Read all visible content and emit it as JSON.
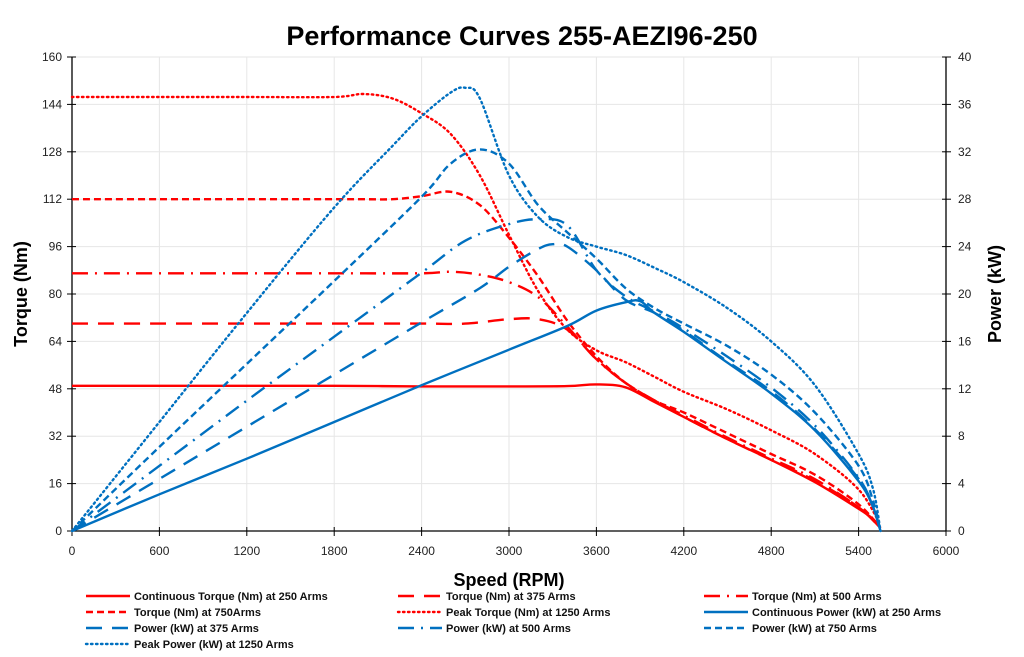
{
  "chart_data": {
    "type": "line",
    "title": "Performance Curves 255-AEZI96-250",
    "xlabel": "Speed (RPM)",
    "ylabel": "Torque (Nm)",
    "y2label": "Power (kW)",
    "xlim": [
      0,
      6000
    ],
    "ylim": [
      0,
      160
    ],
    "y2lim": [
      0,
      40
    ],
    "xticks": [
      0,
      600,
      1200,
      1800,
      2400,
      3000,
      3600,
      4200,
      4800,
      5400,
      6000
    ],
    "yticks": [
      0,
      16,
      32,
      48,
      64,
      80,
      96,
      112,
      128,
      144,
      160
    ],
    "y2ticks": [
      0,
      4,
      8,
      12,
      16,
      20,
      24,
      28,
      32,
      36,
      40
    ],
    "grid": true,
    "legend_position": "bottom",
    "colors": {
      "torque": "#ff0000",
      "power": "#0070c0"
    },
    "series": [
      {
        "name": "Continuous Torque (Nm) at 250 Arms",
        "axis": "left",
        "color": "#ff0000",
        "style": "solid",
        "x": [
          0,
          600,
          1200,
          1800,
          2400,
          3000,
          3400,
          3600,
          3800,
          4000,
          4200,
          4500,
          4800,
          5100,
          5400,
          5500,
          5550
        ],
        "y": [
          49,
          49,
          49,
          49,
          48.8,
          48.8,
          48.9,
          49.5,
          48.5,
          43.5,
          38.5,
          31,
          24,
          16.5,
          7.5,
          4,
          1
        ]
      },
      {
        "name": "Torque (Nm) at 375 Arms",
        "axis": "left",
        "color": "#ff0000",
        "style": "longdash",
        "x": [
          0,
          600,
          1200,
          1800,
          2400,
          2700,
          3000,
          3200,
          3400,
          3600,
          3800,
          4000,
          4200,
          4500,
          4800,
          5100,
          5400,
          5550
        ],
        "y": [
          70,
          70,
          70,
          70,
          70,
          70,
          71.5,
          71.5,
          68,
          58,
          50,
          44,
          38.5,
          31,
          24,
          17,
          8,
          1
        ]
      },
      {
        "name": "Torque (Nm) at 500 Arms",
        "axis": "left",
        "color": "#ff0000",
        "style": "dashdot",
        "x": [
          0,
          600,
          1200,
          1800,
          2400,
          2600,
          2800,
          3000,
          3200,
          3400,
          3600,
          3800,
          4000,
          4200,
          4500,
          4800,
          5100,
          5400,
          5550
        ],
        "y": [
          87,
          87,
          87,
          87,
          87,
          87.5,
          86.5,
          84,
          79,
          69,
          58,
          50,
          44,
          39,
          31.5,
          24.5,
          17.5,
          8,
          1
        ]
      },
      {
        "name": "Torque (Nm) at 750Arms",
        "axis": "left",
        "color": "#ff0000",
        "style": "dash",
        "x": [
          0,
          600,
          1200,
          1800,
          2000,
          2200,
          2400,
          2600,
          2800,
          3000,
          3200,
          3400,
          3600,
          3800,
          4000,
          4200,
          4500,
          4800,
          5100,
          5400,
          5550
        ],
        "y": [
          112,
          112,
          112,
          112,
          112,
          112,
          113,
          114.5,
          110,
          99,
          86,
          71,
          59,
          50,
          44,
          40,
          33,
          26,
          19,
          9,
          1
        ]
      },
      {
        "name": "Peak Torque (Nm) at 1250  Arms",
        "axis": "left",
        "color": "#ff0000",
        "style": "dot",
        "x": [
          0,
          600,
          1200,
          1800,
          2000,
          2200,
          2400,
          2600,
          2800,
          3000,
          3200,
          3400,
          3600,
          3800,
          4000,
          4200,
          4500,
          4800,
          5100,
          5400,
          5550
        ],
        "y": [
          146.5,
          146.5,
          146.5,
          146.5,
          147.5,
          146,
          141,
          134,
          120,
          100,
          81,
          68,
          61,
          57,
          52,
          47,
          41,
          34,
          26,
          14,
          2
        ]
      },
      {
        "name": "Continuous Power (kW) at 250 Arms",
        "axis": "right",
        "color": "#0070c0",
        "style": "solid",
        "x": [
          0,
          600,
          1200,
          1800,
          2400,
          3000,
          3400,
          3600,
          3800,
          3900,
          4000,
          4200,
          4500,
          4800,
          5100,
          5400,
          5500,
          5550
        ],
        "y": [
          0,
          3.1,
          6.1,
          9.2,
          12.3,
          15.3,
          17.3,
          18.6,
          19.3,
          19.4,
          18.4,
          16.8,
          14.2,
          11.6,
          8.5,
          4.2,
          2,
          0
        ]
      },
      {
        "name": "Power (kW) at 375 Arms",
        "axis": "right",
        "color": "#0070c0",
        "style": "longdash",
        "x": [
          0,
          600,
          1200,
          1800,
          2400,
          2800,
          3000,
          3200,
          3300,
          3400,
          3600,
          3800,
          4000,
          4200,
          4500,
          4800,
          5100,
          5400,
          5500,
          5550
        ],
        "y": [
          0,
          4.4,
          8.8,
          13.2,
          17.6,
          20.5,
          22.3,
          23.8,
          24.2,
          24,
          22,
          19.5,
          18.4,
          16.9,
          14.3,
          11.8,
          8.6,
          4.4,
          2,
          0
        ]
      },
      {
        "name": "Power (kW) at 500 Arms",
        "axis": "right",
        "color": "#0070c0",
        "style": "dashdot",
        "x": [
          0,
          600,
          1200,
          1800,
          2400,
          2700,
          3000,
          3200,
          3400,
          3600,
          3800,
          4000,
          4200,
          4500,
          4800,
          5100,
          5400,
          5500,
          5550
        ],
        "y": [
          0,
          5.5,
          11,
          16.4,
          21.8,
          24.5,
          25.9,
          26.3,
          25.8,
          22,
          19.8,
          18.5,
          17.1,
          14.7,
          12.1,
          8.9,
          4.5,
          2,
          0
        ]
      },
      {
        "name": "Power (kW) at 750 Arms",
        "axis": "right",
        "color": "#0070c0",
        "style": "dash",
        "x": [
          0,
          600,
          1200,
          1800,
          2400,
          2600,
          2800,
          3000,
          3200,
          3400,
          3600,
          3800,
          4000,
          4200,
          4500,
          4800,
          5100,
          5400,
          5500,
          5550
        ],
        "y": [
          0,
          7.1,
          14.1,
          21.1,
          28.2,
          31,
          32.2,
          31,
          27.5,
          25.2,
          23,
          20.5,
          18.8,
          17.5,
          15.6,
          13.2,
          10,
          5.5,
          2.5,
          0
        ]
      },
      {
        "name": "Peak Power (kW) at 1250 Arms",
        "axis": "right",
        "color": "#0070c0",
        "style": "dot",
        "x": [
          0,
          600,
          1200,
          1800,
          2200,
          2400,
          2600,
          2700,
          2800,
          3000,
          3200,
          3400,
          3600,
          3800,
          4000,
          4200,
          4500,
          4800,
          5100,
          5400,
          5500,
          5550
        ],
        "y": [
          0,
          9.2,
          18.4,
          27.3,
          32.5,
          35,
          37,
          37.4,
          36.5,
          30,
          26.5,
          24.8,
          24,
          23.3,
          22.2,
          21,
          18.8,
          16,
          12.3,
          6.5,
          3.5,
          0
        ]
      }
    ]
  }
}
